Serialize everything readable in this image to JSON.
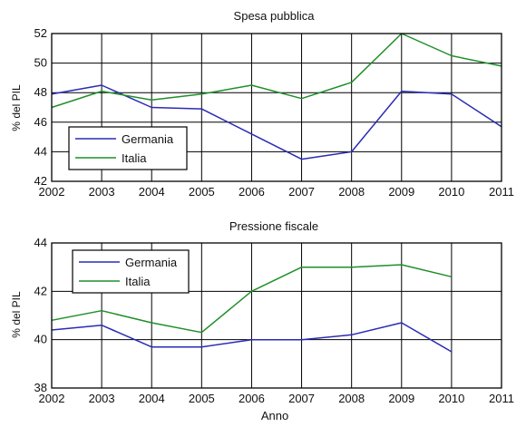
{
  "colors": {
    "germania": "#2b2bb5",
    "italia": "#1f8f2a"
  },
  "chart_data": [
    {
      "type": "line",
      "title": "Spesa pubblica",
      "ylabel": "% del PIL",
      "xlabel": "",
      "x": [
        2002,
        2003,
        2004,
        2005,
        2006,
        2007,
        2008,
        2009,
        2010,
        2011
      ],
      "xticks": [
        "2002",
        "2003",
        "2004",
        "2005",
        "2006",
        "2007",
        "2008",
        "2009",
        "2010",
        "2011"
      ],
      "ylim": [
        42,
        52
      ],
      "yticks": [
        "42",
        "44",
        "46",
        "48",
        "50",
        "52"
      ],
      "grid": true,
      "legend_position": "bottom-left",
      "series": [
        {
          "name": "Germania",
          "color": "#2b2bb5",
          "values": [
            47.9,
            48.5,
            47.0,
            46.9,
            45.2,
            43.5,
            44.0,
            48.1,
            47.9,
            45.7
          ]
        },
        {
          "name": "Italia",
          "color": "#1f8f2a",
          "values": [
            47.0,
            48.1,
            47.5,
            47.9,
            48.5,
            47.6,
            48.7,
            52.0,
            50.5,
            49.8
          ]
        }
      ]
    },
    {
      "type": "line",
      "title": "Pressione fiscale",
      "ylabel": "% del PIL",
      "xlabel": "Anno",
      "x": [
        2002,
        2003,
        2004,
        2005,
        2006,
        2007,
        2008,
        2009,
        2010,
        2011
      ],
      "xticks": [
        "2002",
        "2003",
        "2004",
        "2005",
        "2006",
        "2007",
        "2008",
        "2009",
        "2010",
        "2011"
      ],
      "ylim": [
        38,
        44
      ],
      "yticks": [
        "38",
        "40",
        "42",
        "44"
      ],
      "grid": true,
      "legend_position": "top-left",
      "series": [
        {
          "name": "Germania",
          "color": "#2b2bb5",
          "x": [
            2002,
            2003,
            2004,
            2005,
            2006,
            2007,
            2008,
            2009,
            2010
          ],
          "values": [
            40.4,
            40.6,
            39.7,
            39.7,
            40.0,
            40.0,
            40.2,
            40.7,
            39.5
          ]
        },
        {
          "name": "Italia",
          "color": "#1f8f2a",
          "x": [
            2002,
            2003,
            2004,
            2005,
            2006,
            2007,
            2008,
            2009,
            2010
          ],
          "values": [
            40.8,
            41.2,
            40.7,
            40.3,
            42.0,
            43.0,
            43.0,
            43.1,
            42.6
          ]
        }
      ]
    }
  ]
}
